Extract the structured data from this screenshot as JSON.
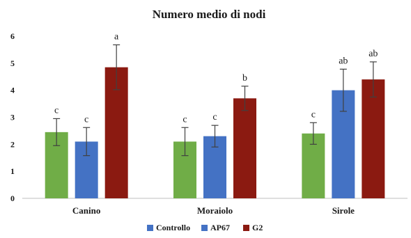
{
  "chart_data": {
    "type": "bar",
    "title": "Numero medio di nodi",
    "xlabel": "",
    "ylabel": "",
    "categories": [
      "Canino",
      "Moraiolo",
      "Sirole"
    ],
    "ylim": [
      0,
      6
    ],
    "yticks": [
      "0",
      "1",
      "2",
      "3",
      "4",
      "5",
      "6"
    ],
    "grid": false,
    "legend_position": "bottom",
    "series": [
      {
        "name": "Controllo",
        "color": "#70ad47",
        "legend_color": "#4472c4",
        "values": [
          2.45,
          2.1,
          2.4
        ],
        "errors": [
          0.5,
          0.52,
          0.4
        ],
        "labels": [
          "c",
          "c",
          "c"
        ]
      },
      {
        "name": "AP67",
        "color": "#4472c4",
        "legend_color": "#4472c4",
        "values": [
          2.1,
          2.3,
          4.0
        ],
        "errors": [
          0.52,
          0.4,
          0.78
        ],
        "labels": [
          "c",
          "c",
          "ab"
        ]
      },
      {
        "name": "G2",
        "color": "#8b1a11",
        "legend_color": "#8b1a11",
        "values": [
          4.85,
          3.7,
          4.4
        ],
        "errors": [
          0.83,
          0.45,
          0.65
        ],
        "labels": [
          "a",
          "b",
          "ab"
        ]
      }
    ]
  }
}
